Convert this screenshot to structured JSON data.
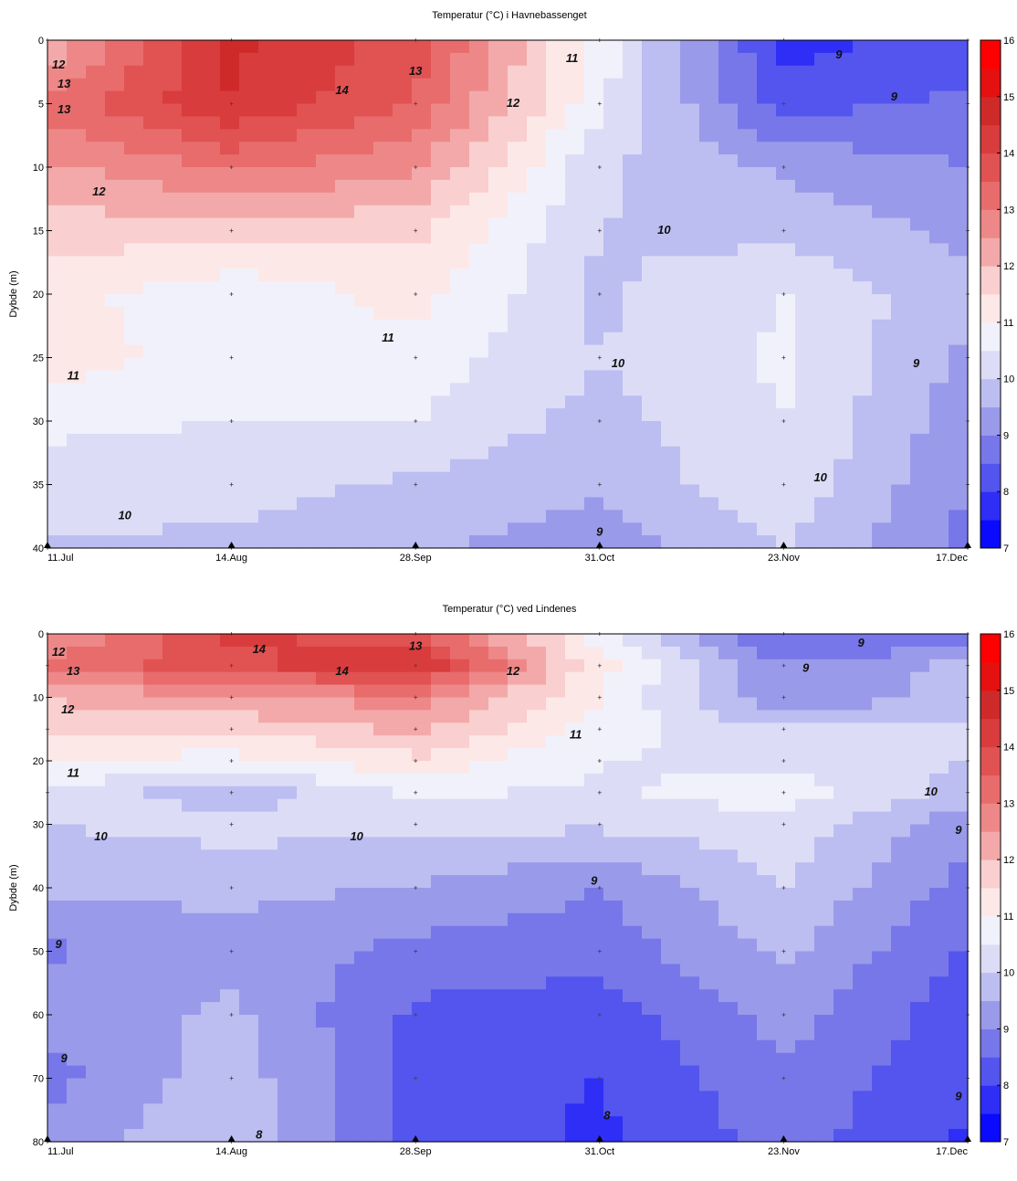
{
  "colorbar": {
    "ticks": [
      7,
      8,
      9,
      10,
      11,
      12,
      13,
      14,
      15,
      16
    ],
    "colors": [
      "#0a0aff",
      "#2e2ef6",
      "#5454ee",
      "#7777ea",
      "#9a9aea",
      "#bcbdf0",
      "#dcdcf6",
      "#f1f1fb",
      "#fde8e8",
      "#f9cfcf",
      "#f3a9a9",
      "#ee8888",
      "#e86c6c",
      "#e15252",
      "#d83c3c",
      "#cf2a2a",
      "#e51010",
      "#ff0000"
    ]
  },
  "chart_data": [
    {
      "type": "heatmap",
      "title": "Temperatur (°C) i Havnebassenget",
      "ylabel": "Dybde (m)",
      "xlabel": "",
      "x_ticks": [
        "11.Jul",
        "14.Aug",
        "28.Sep",
        "31.Oct",
        "23.Nov",
        "17.Dec"
      ],
      "y_ticks": [
        0,
        5,
        10,
        15,
        20,
        25,
        30,
        35,
        40
      ],
      "ylim": [
        0,
        40
      ],
      "depths": [
        0,
        5,
        10,
        15,
        20,
        25,
        30,
        35,
        40
      ],
      "temperature": [
        [
          12.0,
          14.6,
          13.8,
          10.8,
          7.8,
          8.2
        ],
        [
          13.2,
          14.5,
          13.4,
          10.6,
          8.3,
          8.6
        ],
        [
          12.4,
          13.1,
          12.6,
          10.1,
          9.4,
          9.0
        ],
        [
          11.7,
          11.8,
          11.6,
          10.0,
          9.8,
          9.4
        ],
        [
          11.2,
          10.6,
          11.2,
          9.9,
          10.5,
          9.6
        ],
        [
          11.3,
          10.7,
          10.8,
          10.0,
          10.6,
          9.4
        ],
        [
          10.6,
          10.5,
          10.5,
          9.8,
          10.5,
          9.2
        ],
        [
          10.3,
          10.2,
          9.9,
          9.6,
          10.4,
          9.0
        ],
        [
          9.9,
          9.9,
          9.6,
          9.2,
          10.0,
          8.8
        ]
      ],
      "contour_labels": [
        {
          "text": "12",
          "x": 0.06,
          "y": 2
        },
        {
          "text": "13",
          "x": 0.09,
          "y": 3.5
        },
        {
          "text": "13",
          "x": 0.09,
          "y": 5.5
        },
        {
          "text": "14",
          "x": 1.6,
          "y": 4
        },
        {
          "text": "13",
          "x": 2.0,
          "y": 2.5
        },
        {
          "text": "12",
          "x": 2.53,
          "y": 5
        },
        {
          "text": "11",
          "x": 2.85,
          "y": 1.5
        },
        {
          "text": "9",
          "x": 4.3,
          "y": 1.2
        },
        {
          "text": "9",
          "x": 4.6,
          "y": 4.5
        },
        {
          "text": "12",
          "x": 0.28,
          "y": 12
        },
        {
          "text": "10",
          "x": 3.35,
          "y": 15
        },
        {
          "text": "11",
          "x": 1.85,
          "y": 23.5
        },
        {
          "text": "11",
          "x": 0.14,
          "y": 26.5
        },
        {
          "text": "10",
          "x": 3.1,
          "y": 25.5
        },
        {
          "text": "9",
          "x": 4.72,
          "y": 25.5
        },
        {
          "text": "10",
          "x": 4.2,
          "y": 34.5
        },
        {
          "text": "10",
          "x": 0.42,
          "y": 37.5
        },
        {
          "text": "9",
          "x": 3.0,
          "y": 38.8
        }
      ]
    },
    {
      "type": "heatmap",
      "title": "Temperatur (°C) ved Lindenes",
      "ylabel": "Dybde (m)",
      "xlabel": "",
      "x_ticks": [
        "11.Jul",
        "14.Aug",
        "28.Sep",
        "31.Oct",
        "23.Nov",
        "17.Dec"
      ],
      "y_ticks": [
        0,
        10,
        20,
        30,
        40,
        50,
        60,
        70,
        80
      ],
      "ylim": [
        0,
        80
      ],
      "depths": [
        0,
        5,
        10,
        15,
        20,
        25,
        30,
        40,
        50,
        60,
        70,
        80
      ],
      "temperature": [
        [
          12.3,
          14.2,
          13.6,
          10.8,
          8.4,
          8.6
        ],
        [
          13.2,
          13.8,
          14.5,
          11.2,
          9.0,
          9.6
        ],
        [
          12.1,
          12.4,
          12.8,
          11.0,
          9.0,
          9.8
        ],
        [
          11.5,
          11.6,
          12.1,
          10.8,
          10.0,
          10.1
        ],
        [
          11.0,
          10.8,
          11.4,
          10.5,
          10.3,
          10.0
        ],
        [
          10.4,
          9.7,
          10.6,
          10.4,
          10.8,
          9.8
        ],
        [
          10.0,
          10.2,
          10.1,
          10.1,
          10.3,
          9.2
        ],
        [
          9.6,
          9.6,
          9.5,
          9.0,
          10.0,
          8.8
        ],
        [
          8.9,
          9.4,
          8.8,
          8.7,
          9.6,
          8.4
        ],
        [
          9.2,
          9.6,
          8.4,
          8.2,
          9.2,
          8.2
        ],
        [
          8.8,
          9.8,
          8.3,
          8.0,
          8.9,
          8.1
        ],
        [
          9.3,
          9.9,
          8.3,
          7.9,
          8.7,
          7.9
        ]
      ],
      "contour_labels": [
        {
          "text": "12",
          "x": 0.06,
          "y": 3
        },
        {
          "text": "14",
          "x": 1.15,
          "y": 2.5
        },
        {
          "text": "13",
          "x": 2.0,
          "y": 2
        },
        {
          "text": "13",
          "x": 0.14,
          "y": 6
        },
        {
          "text": "14",
          "x": 1.6,
          "y": 6
        },
        {
          "text": "12",
          "x": 2.53,
          "y": 6
        },
        {
          "text": "9",
          "x": 4.42,
          "y": 1.5
        },
        {
          "text": "9",
          "x": 4.12,
          "y": 5.5
        },
        {
          "text": "12",
          "x": 0.11,
          "y": 12
        },
        {
          "text": "11",
          "x": 2.87,
          "y": 16
        },
        {
          "text": "10",
          "x": 4.8,
          "y": 25
        },
        {
          "text": "11",
          "x": 0.14,
          "y": 22
        },
        {
          "text": "10",
          "x": 0.29,
          "y": 32
        },
        {
          "text": "10",
          "x": 1.68,
          "y": 32
        },
        {
          "text": "9",
          "x": 2.97,
          "y": 39
        },
        {
          "text": "9",
          "x": 4.95,
          "y": 31
        },
        {
          "text": "9",
          "x": 0.06,
          "y": 49
        },
        {
          "text": "9",
          "x": 0.09,
          "y": 67
        },
        {
          "text": "9",
          "x": 4.95,
          "y": 73
        },
        {
          "text": "8",
          "x": 3.04,
          "y": 76
        },
        {
          "text": "8",
          "x": 1.15,
          "y": 79
        }
      ]
    }
  ]
}
